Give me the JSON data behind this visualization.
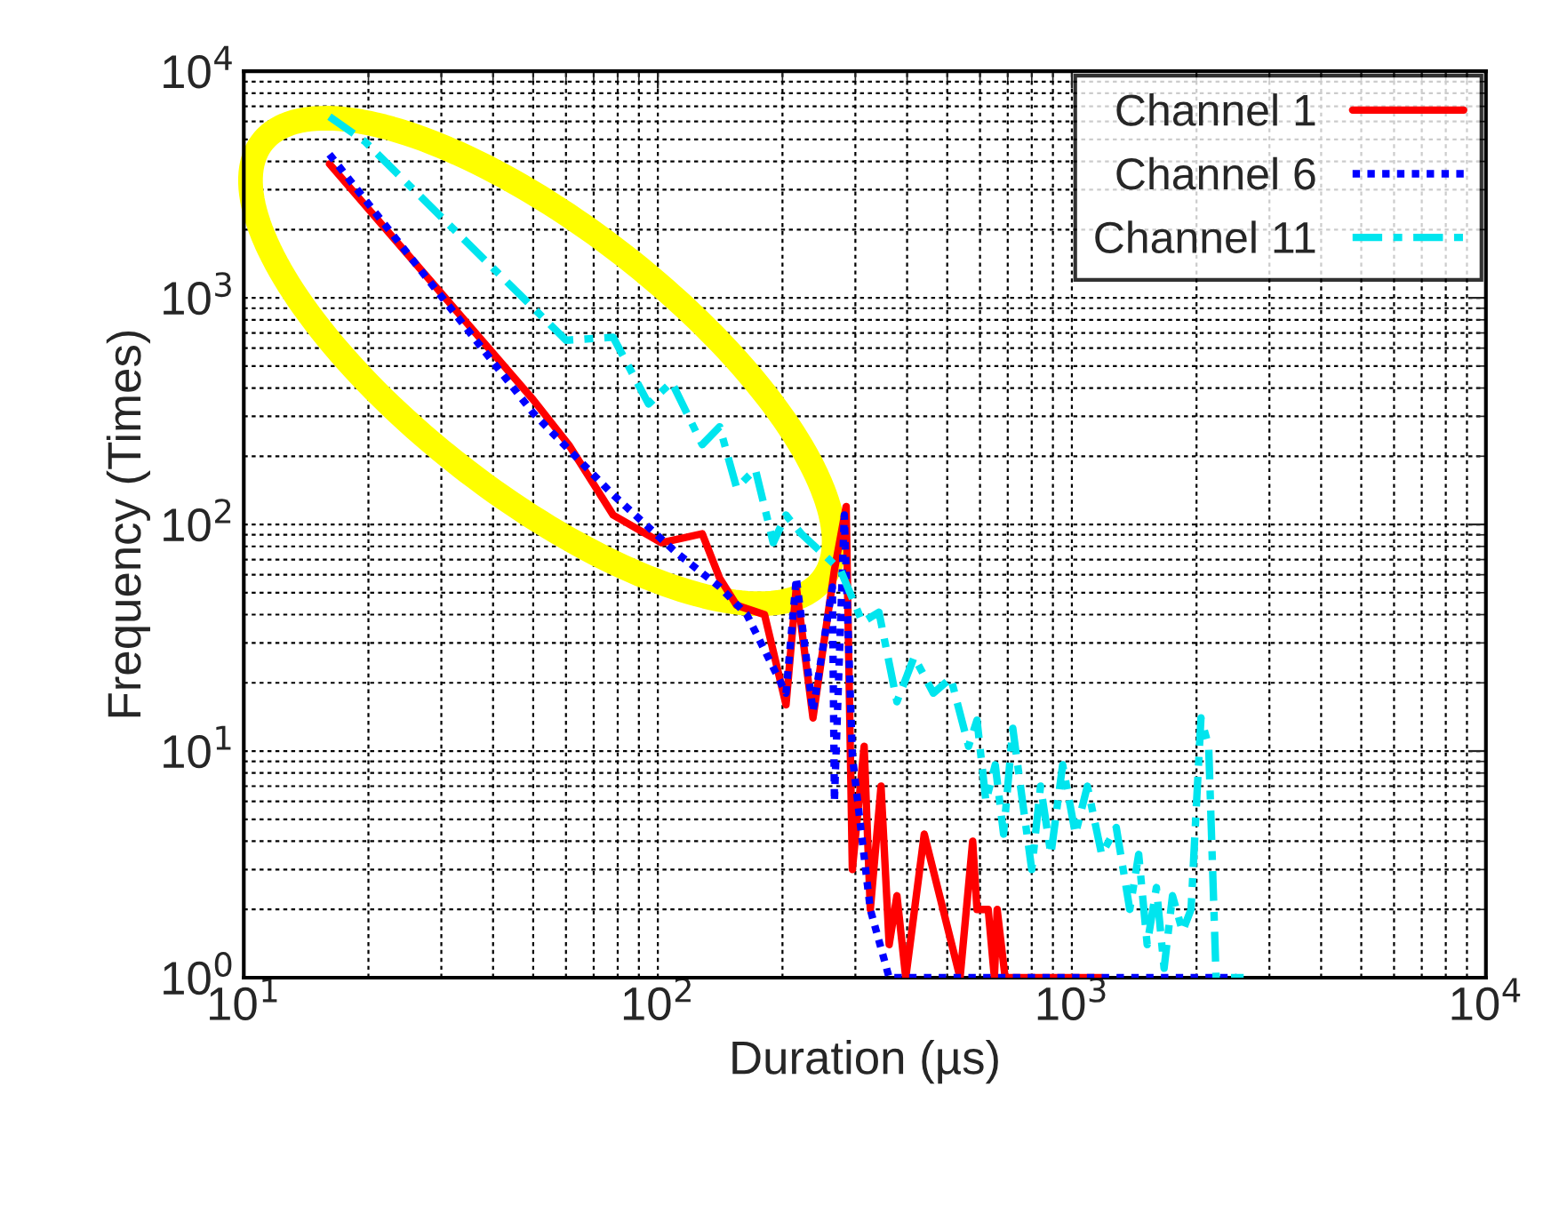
{
  "chart_data": {
    "type": "line",
    "xlabel": "Duration (µs)",
    "ylabel": "Frequency (Times)",
    "log": "xy",
    "grid": true,
    "legend": "top right",
    "xlim": [
      10,
      10000
    ],
    "ylim": [
      1,
      10000
    ],
    "xticks": [
      {
        "value": 10,
        "label": "10$^{1}$"
      },
      {
        "value": 100,
        "label": "10$^{2}$"
      },
      {
        "value": 1000,
        "label": "10$^{3}$"
      },
      {
        "value": 10000,
        "label": "10$^{4}$"
      }
    ],
    "yticks": [
      {
        "value": 1,
        "label": "10$^{0}$"
      },
      {
        "value": 10,
        "label": "10$^{1}$"
      },
      {
        "value": 100,
        "label": "10$^{2}$"
      },
      {
        "value": 1000,
        "label": "10$^{3}$"
      },
      {
        "value": 10000,
        "label": "10$^{4}$"
      }
    ],
    "series": [
      {
        "name": "Channel 1",
        "color": "#ff0000",
        "line_style": "solid",
        "x": [
          16.1,
          50,
          61,
          78,
          102,
          128,
          141,
          155,
          181,
          204,
          216,
          237,
          267,
          285,
          295,
          315,
          326,
          346,
          362,
          378,
          397,
          440,
          537,
          576,
          590,
          628,
          650,
          660,
          690,
          740,
          1180
        ],
        "values": [
          3900,
          355,
          224,
          110,
          83,
          91,
          58,
          44,
          40,
          16,
          53,
          14,
          63,
          120,
          3,
          10.5,
          2,
          7,
          1.4,
          2.3,
          1,
          4.3,
          1,
          4,
          2,
          2,
          1,
          2,
          1,
          1,
          1
        ]
      },
      {
        "name": "Channel 6",
        "color": "#0000ff",
        "line_style": "dotted",
        "x": [
          16.1,
          50,
          78,
          110,
          141,
          164,
          204,
          216,
          237,
          264,
          267,
          282,
          295,
          326,
          362,
          2500
        ],
        "values": [
          4300,
          310,
          135,
          76,
          53,
          40,
          18,
          58,
          15,
          53,
          6,
          110,
          9.5,
          2,
          1,
          1
        ]
      },
      {
        "name": "Channel 11",
        "color": "#00e5ee",
        "line_style": "dashed",
        "x": [
          16.1,
          19.6,
          60,
          78,
          95,
          108,
          128,
          141,
          155,
          172,
          190,
          204,
          222,
          247,
          276,
          312,
          342,
          378,
          416,
          463,
          510,
          563,
          590,
          620,
          653,
          684,
          720,
          760,
          800,
          840,
          890,
          950,
          1020,
          1090,
          1180,
          1280,
          1380,
          1450,
          1520,
          1600,
          1670,
          1750,
          1850,
          1940,
          2050,
          2140,
          2230,
          2600
        ],
        "values": [
          6300,
          4900,
          650,
          670,
          340,
          425,
          225,
          270,
          145,
          175,
          83,
          110,
          91,
          76,
          63,
          37,
          41,
          16.5,
          26,
          18,
          21,
          10.5,
          13.7,
          6,
          8.7,
          4.3,
          12.6,
          6,
          3,
          7,
          3.5,
          8.7,
          4.3,
          7,
          3.5,
          4.6,
          2,
          3.5,
          1.4,
          2.5,
          1.1,
          2.3,
          1.6,
          2,
          14,
          10.5,
          1,
          1
        ]
      }
    ]
  }
}
